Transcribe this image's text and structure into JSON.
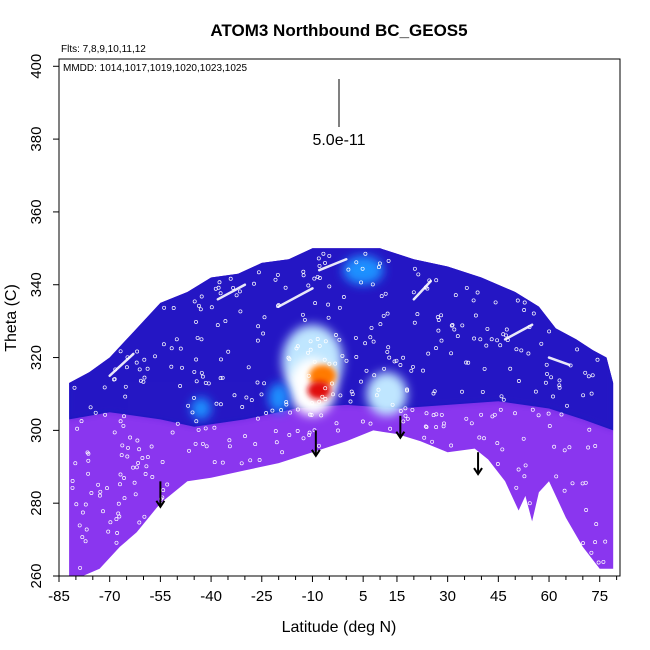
{
  "chart_data": {
    "type": "heatmap",
    "title": "ATOM3 Northbound BC_GEOS5",
    "subtitle_lines": [
      "Flts: 7,8,9,10,11,12",
      "MMDD: 1014,1017,1019,1020,1023,1025"
    ],
    "xlabel": "Latitude (deg N)",
    "ylabel": "Theta (C)",
    "xlim": [
      -85,
      81
    ],
    "ylim": [
      260,
      402
    ],
    "x_ticks": [
      -85,
      -70,
      -55,
      -40,
      -25,
      -10,
      5,
      15,
      30,
      45,
      60,
      75
    ],
    "y_ticks": [
      260,
      280,
      300,
      320,
      340,
      360,
      380,
      400
    ],
    "scale_bar_label": "5.0e-11",
    "scale_bar_position": "top-center",
    "colormap": [
      "#7a2ee0",
      "#5a22d6",
      "#1f1fc8",
      "#0a40e0",
      "#1e90ff",
      "#bfe6ff",
      "#ffffff",
      "#ffd21e",
      "#ff7a00",
      "#e01010"
    ],
    "colors": {
      "field_background": "#3a17c8",
      "lower_region": "#8a36ef",
      "upper_region": "#1a18c2",
      "hotspot_core": "#e01010",
      "aircraft_points": "#ffffff",
      "arrow": "#000000"
    },
    "region_boundary": {
      "top": [
        {
          "x": -82,
          "y": 313
        },
        {
          "x": -76,
          "y": 316
        },
        {
          "x": -70,
          "y": 320
        },
        {
          "x": -63,
          "y": 327
        },
        {
          "x": -55,
          "y": 335
        },
        {
          "x": -47,
          "y": 338
        },
        {
          "x": -40,
          "y": 342
        },
        {
          "x": -32,
          "y": 343
        },
        {
          "x": -25,
          "y": 346
        },
        {
          "x": -17,
          "y": 347
        },
        {
          "x": -10,
          "y": 350
        },
        {
          "x": 0,
          "y": 350
        },
        {
          "x": 10,
          "y": 350
        },
        {
          "x": 20,
          "y": 347
        },
        {
          "x": 30,
          "y": 345
        },
        {
          "x": 40,
          "y": 342
        },
        {
          "x": 50,
          "y": 338
        },
        {
          "x": 57,
          "y": 334
        },
        {
          "x": 62,
          "y": 328
        },
        {
          "x": 68,
          "y": 325
        },
        {
          "x": 73,
          "y": 322
        },
        {
          "x": 77,
          "y": 320
        },
        {
          "x": 79,
          "y": 313
        }
      ],
      "bottom": [
        {
          "x": 79,
          "y": 262
        },
        {
          "x": 75,
          "y": 262
        },
        {
          "x": 70,
          "y": 268
        },
        {
          "x": 65,
          "y": 276
        },
        {
          "x": 60,
          "y": 286
        },
        {
          "x": 57,
          "y": 283
        },
        {
          "x": 55,
          "y": 275
        },
        {
          "x": 53,
          "y": 282
        },
        {
          "x": 51,
          "y": 278
        },
        {
          "x": 47,
          "y": 286
        },
        {
          "x": 42,
          "y": 292
        },
        {
          "x": 38,
          "y": 295
        },
        {
          "x": 30,
          "y": 294
        },
        {
          "x": 22,
          "y": 297
        },
        {
          "x": 15,
          "y": 299
        },
        {
          "x": 8,
          "y": 300
        },
        {
          "x": 0,
          "y": 297
        },
        {
          "x": -10,
          "y": 294
        },
        {
          "x": -20,
          "y": 291
        },
        {
          "x": -30,
          "y": 289
        },
        {
          "x": -40,
          "y": 287
        },
        {
          "x": -47,
          "y": 286
        },
        {
          "x": -55,
          "y": 280
        },
        {
          "x": -62,
          "y": 272
        },
        {
          "x": -67,
          "y": 268
        },
        {
          "x": -73,
          "y": 262
        },
        {
          "x": -78,
          "y": 260
        },
        {
          "x": -82,
          "y": 260
        }
      ]
    },
    "upper_band_lower_edge": [
      {
        "x": -82,
        "y": 303
      },
      {
        "x": -70,
        "y": 305
      },
      {
        "x": -55,
        "y": 303
      },
      {
        "x": -45,
        "y": 301
      },
      {
        "x": -30,
        "y": 303
      },
      {
        "x": -15,
        "y": 306
      },
      {
        "x": 0,
        "y": 307
      },
      {
        "x": 15,
        "y": 306
      },
      {
        "x": 30,
        "y": 307
      },
      {
        "x": 45,
        "y": 308
      },
      {
        "x": 60,
        "y": 306
      },
      {
        "x": 70,
        "y": 303
      },
      {
        "x": 79,
        "y": 300
      }
    ],
    "features": [
      {
        "x": -10,
        "y": 319,
        "rx": 9,
        "ry": 10,
        "level": 0.55
      },
      {
        "x": -10,
        "y": 312,
        "rx": 7,
        "ry": 8,
        "level": 0.65
      },
      {
        "x": 12,
        "y": 310,
        "rx": 6,
        "ry": 6,
        "level": 0.55
      },
      {
        "x": 5,
        "y": 344,
        "rx": 6,
        "ry": 4,
        "level": 0.45
      },
      {
        "x": -43,
        "y": 306,
        "rx": 3,
        "ry": 3,
        "level": 0.45
      },
      {
        "x": -20,
        "y": 309,
        "rx": 3,
        "ry": 4,
        "level": 0.45
      }
    ],
    "hotspots": [
      {
        "x": -7,
        "y": 315,
        "rx": 4,
        "ry": 3,
        "level": 0.88
      },
      {
        "x": -8,
        "y": 311,
        "rx": 3.5,
        "ry": 2.5,
        "level": 0.95
      }
    ],
    "arrows": [
      {
        "x": -55,
        "y_from": 286,
        "y_to": 279
      },
      {
        "x": -9,
        "y_from": 300,
        "y_to": 293
      },
      {
        "x": 16,
        "y_from": 304,
        "y_to": 298
      },
      {
        "x": 39,
        "y_from": 294,
        "y_to": 288
      }
    ],
    "flight_tracks": [
      {
        "x1": -20,
        "y1": 334,
        "x2": -10,
        "y2": 339
      },
      {
        "x1": -38,
        "y1": 336,
        "x2": -30,
        "y2": 340
      },
      {
        "x1": -8,
        "y1": 344,
        "x2": 0,
        "y2": 347
      },
      {
        "x1": 20,
        "y1": 336,
        "x2": 25,
        "y2": 341
      },
      {
        "x1": 47,
        "y1": 325,
        "x2": 55,
        "y2": 329
      },
      {
        "x1": 60,
        "y1": 320,
        "x2": 66,
        "y2": 318
      },
      {
        "x1": -70,
        "y1": 315,
        "x2": -63,
        "y2": 321
      }
    ]
  }
}
